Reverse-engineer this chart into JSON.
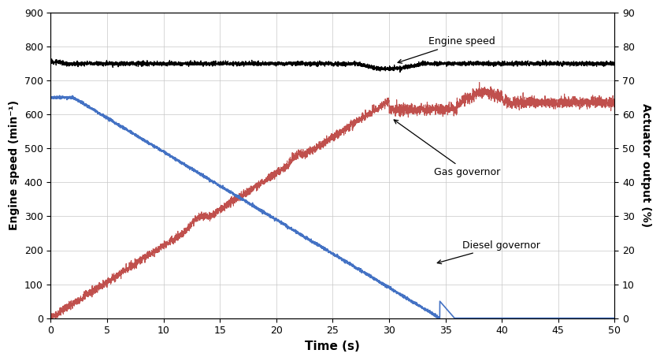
{
  "title": "",
  "xlabel": "Time (s)",
  "ylabel_left": "Engine speed (min⁻¹)",
  "ylabel_right": "Actuator output (%)",
  "xlim": [
    0,
    50
  ],
  "ylim_left": [
    0,
    900
  ],
  "ylim_right": [
    0,
    90
  ],
  "xticks": [
    0,
    5,
    10,
    15,
    20,
    25,
    30,
    35,
    40,
    45,
    50
  ],
  "yticks_left": [
    0,
    100,
    200,
    300,
    400,
    500,
    600,
    700,
    800,
    900
  ],
  "yticks_right": [
    0,
    10,
    20,
    30,
    40,
    50,
    60,
    70,
    80,
    90
  ],
  "colors": {
    "engine_speed": "#000000",
    "diesel_governor": "#4472c4",
    "gas_governor": "#c0504d",
    "annotation": "#000000"
  },
  "figsize": [
    8.38,
    4.58
  ],
  "dpi": 100
}
